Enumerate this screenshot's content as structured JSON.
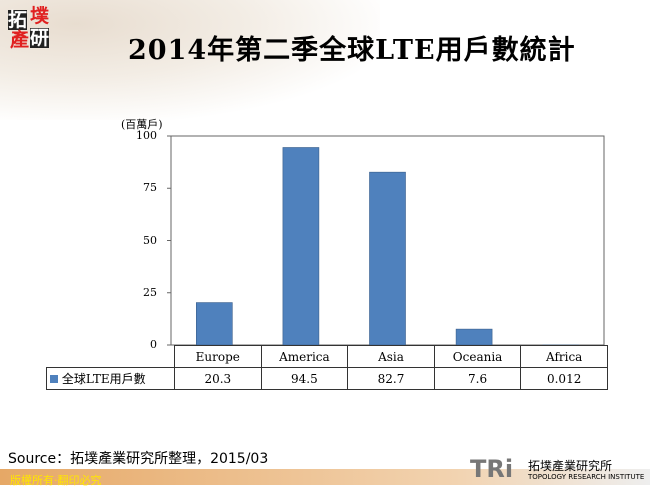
{
  "logo_text": "拓墣產研",
  "title": "2014年第二季全球LTE用戶數統計",
  "chart_data": {
    "type": "bar",
    "title": "2014年第二季全球LTE用戶數統計",
    "ylabel": "(百萬戶)",
    "ylim": [
      0,
      100
    ],
    "yticks": [
      "0",
      "25",
      "50",
      "75",
      "100"
    ],
    "categories": [
      "Europe",
      "America",
      "Asia",
      "Oceania",
      "Africa"
    ],
    "series": [
      {
        "name": "全球LTE用戶數",
        "values": [
          20.3,
          94.5,
          82.7,
          7.6,
          0.012
        ],
        "labels": [
          "20.3",
          "94.5",
          "82.7",
          "7.6",
          "0.012"
        ],
        "color": "#4f81bd"
      }
    ],
    "grid": false,
    "legend": "data-table"
  },
  "source": "Source：拓墣產業研究所整理，2015/03",
  "footer": "版權所有‧翻印必究",
  "brand": {
    "mark": "TRi",
    "name": "拓墣產業研究所",
    "english": "TOPOLOGY RESEARCH INSTITUTE"
  }
}
